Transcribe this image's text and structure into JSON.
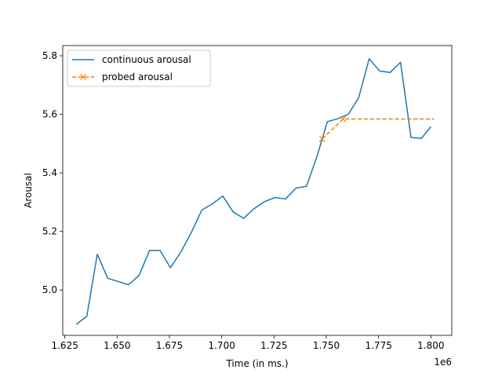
{
  "chart_data": {
    "type": "line",
    "title": "",
    "xlabel": "Time (in ms.)",
    "ylabel": "Arousal",
    "x_offset_label": "1e6",
    "xlim": [
      1.624,
      1.81
    ],
    "ylim": [
      4.845,
      5.835
    ],
    "x_ticks": [
      1.625,
      1.65,
      1.675,
      1.7,
      1.725,
      1.75,
      1.775,
      1.8
    ],
    "x_tick_labels": [
      "1.625",
      "1.650",
      "1.675",
      "1.700",
      "1.725",
      "1.750",
      "1.775",
      "1.800"
    ],
    "y_ticks": [
      5.0,
      5.2,
      5.4,
      5.6,
      5.8
    ],
    "y_tick_labels": [
      "5.0",
      "5.2",
      "5.4",
      "5.6",
      "5.8"
    ],
    "grid": false,
    "legend": "top-left",
    "series": [
      {
        "name": "continuous arousal",
        "color": "#1f77b4",
        "style": "solid",
        "marker": "none",
        "x": [
          1.6305,
          1.6355,
          1.6405,
          1.6455,
          1.6505,
          1.6555,
          1.6605,
          1.6655,
          1.6705,
          1.6755,
          1.6805,
          1.6855,
          1.6905,
          1.6955,
          1.7005,
          1.7055,
          1.7105,
          1.7155,
          1.7205,
          1.7255,
          1.7305,
          1.7355,
          1.7405,
          1.7455,
          1.7505,
          1.7555,
          1.7605,
          1.7655,
          1.7705,
          1.7755,
          1.7805,
          1.7855,
          1.7905,
          1.7955,
          1.8
        ],
        "y": [
          4.883,
          4.91,
          5.122,
          5.04,
          5.029,
          5.018,
          5.05,
          5.135,
          5.135,
          5.076,
          5.13,
          5.197,
          5.273,
          5.294,
          5.321,
          5.266,
          5.245,
          5.278,
          5.302,
          5.316,
          5.311,
          5.348,
          5.354,
          5.455,
          5.575,
          5.585,
          5.6,
          5.657,
          5.79,
          5.748,
          5.743,
          5.778,
          5.521,
          5.518,
          5.558
        ]
      },
      {
        "name": "probed arousal",
        "color": "#ff7f0e",
        "style": "dashed",
        "marker": "x",
        "x": [
          1.748,
          1.758,
          1.8015
        ],
        "y": [
          5.516,
          5.584,
          5.584
        ],
        "marker_indices": [
          0,
          1
        ]
      }
    ]
  }
}
